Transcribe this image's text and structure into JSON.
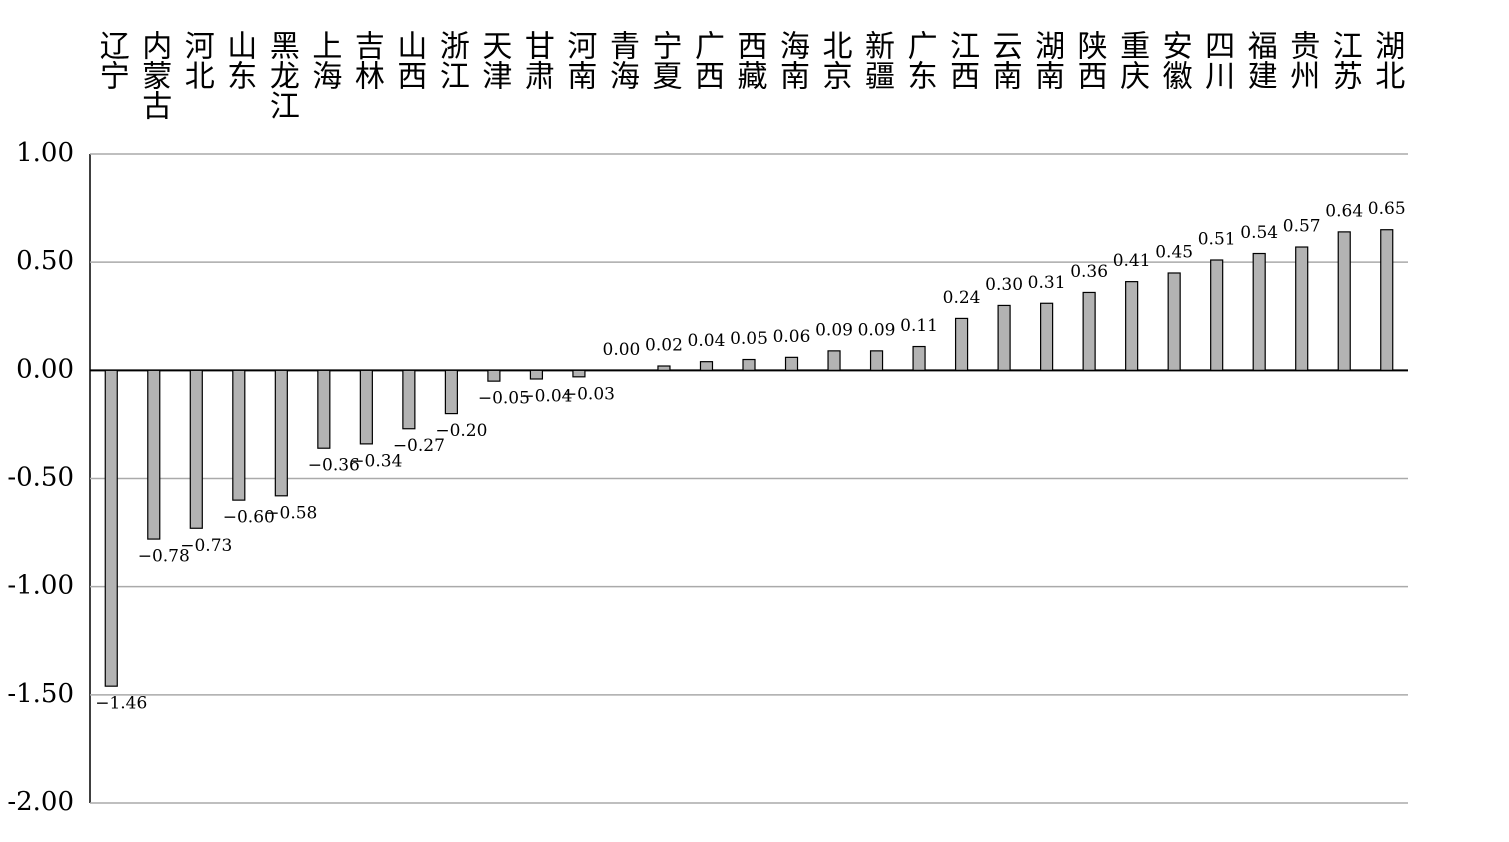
{
  "chart_data": {
    "type": "bar",
    "categories": [
      "辽宁",
      "内蒙古",
      "河北",
      "山东",
      "黑龙江",
      "上海",
      "吉林",
      "山西",
      "浙江",
      "天津",
      "甘肃",
      "河南",
      "青海",
      "宁夏",
      "广西",
      "西藏",
      "海南",
      "北京",
      "新疆",
      "广东",
      "江西",
      "云南",
      "湖南",
      "陕西",
      "重庆",
      "安徽",
      "四川",
      "福建",
      "贵州",
      "江苏",
      "湖北"
    ],
    "values": [
      -1.46,
      -0.78,
      -0.73,
      -0.6,
      -0.58,
      -0.36,
      -0.34,
      -0.27,
      -0.2,
      -0.05,
      -0.04,
      -0.03,
      0.0,
      0.02,
      0.04,
      0.05,
      0.06,
      0.09,
      0.09,
      0.11,
      0.24,
      0.3,
      0.31,
      0.36,
      0.41,
      0.45,
      0.51,
      0.54,
      0.57,
      0.64,
      0.65
    ],
    "value_labels": [
      "−1.46",
      "−0.78",
      "−0.73",
      "−0.60",
      "−0.58",
      "−0.36",
      "−0.34",
      "−0.27",
      "−0.20",
      "−0.05",
      "−0.04",
      "−0.03",
      "0.00",
      "0.02",
      "0.04",
      "0.05",
      "0.06",
      "0.09",
      "0.09",
      "0.11",
      "0.24",
      "0.30",
      "0.31",
      "0.36",
      "0.41",
      "0.45",
      "0.51",
      "0.54",
      "0.57",
      "0.64",
      "0.65"
    ],
    "color": "#b3b3b3",
    "ylim": [
      -2,
      1
    ],
    "yticks": [
      {
        "value": 1,
        "label": "1.00"
      },
      {
        "value": 0.5,
        "label": "0.50"
      },
      {
        "value": 0,
        "label": "0.00"
      },
      {
        "value": -0.5,
        "label": "-0.50"
      },
      {
        "value": -1,
        "label": "-1.00"
      },
      {
        "value": -1.5,
        "label": "-1.50"
      },
      {
        "value": -2,
        "label": "-2.00"
      }
    ],
    "grid": true
  }
}
